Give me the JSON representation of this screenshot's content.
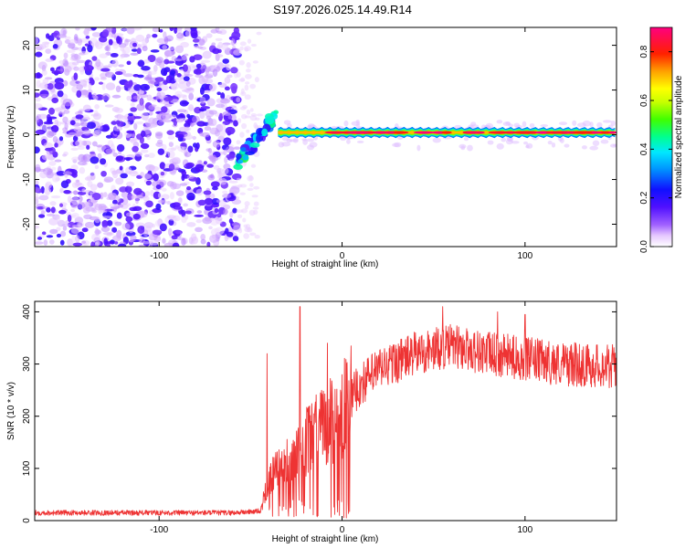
{
  "title": "S197.2026.025.14.49.R14",
  "chart_data": [
    {
      "type": "heatmap",
      "xlabel": "Height of straight line (km)",
      "ylabel": "Frequency (Hz)",
      "xlim": [
        -168,
        150
      ],
      "ylim": [
        -25,
        24
      ],
      "xticks": [
        -100,
        0,
        100
      ],
      "yticks": [
        -20,
        -10,
        0,
        10,
        20
      ],
      "colorbar": {
        "label": "Normalized spectral amplitude",
        "range": [
          0.0,
          0.9
        ],
        "ticks": [
          0.0,
          0.2,
          0.4,
          0.6,
          0.8
        ]
      },
      "regions": [
        {
          "name": "noise",
          "x_range": [
            -168,
            -57
          ],
          "freq_range": [
            -25,
            24
          ],
          "amplitude": 0.05
        },
        {
          "name": "transition",
          "x_range": [
            -57,
            -35
          ],
          "freq_center": [
            -6,
            5
          ],
          "amplitude": 0.45
        },
        {
          "name": "tone",
          "x_range": [
            -35,
            150
          ],
          "freq_center": 0.5,
          "amplitude": 0.85
        }
      ]
    },
    {
      "type": "line",
      "xlabel": "Height of straight line (km)",
      "ylabel": "SNR (10 * v/v)",
      "xlim": [
        -168,
        150
      ],
      "ylim": [
        0,
        420
      ],
      "xticks": [
        -100,
        0,
        100
      ],
      "yticks": [
        0,
        100,
        200,
        300,
        400
      ],
      "series": [
        {
          "name": "SNR",
          "color": "#ee3333",
          "envelope_x": [
            -168,
            -60,
            -45,
            -40,
            -30,
            -20,
            -10,
            0,
            10,
            20,
            40,
            60,
            80,
            100,
            120,
            150
          ],
          "envelope_y": [
            15,
            15,
            18,
            80,
            110,
            150,
            180,
            210,
            260,
            290,
            320,
            335,
            320,
            310,
            300,
            295
          ],
          "spikes": [
            {
              "x": -41,
              "value": 320
            },
            {
              "x": -23,
              "value": 410
            },
            {
              "x": -8,
              "value": 340
            },
            {
              "x": 55,
              "value": 410
            },
            {
              "x": 85,
              "value": 400
            },
            {
              "x": 100,
              "value": 395
            }
          ]
        }
      ]
    }
  ]
}
